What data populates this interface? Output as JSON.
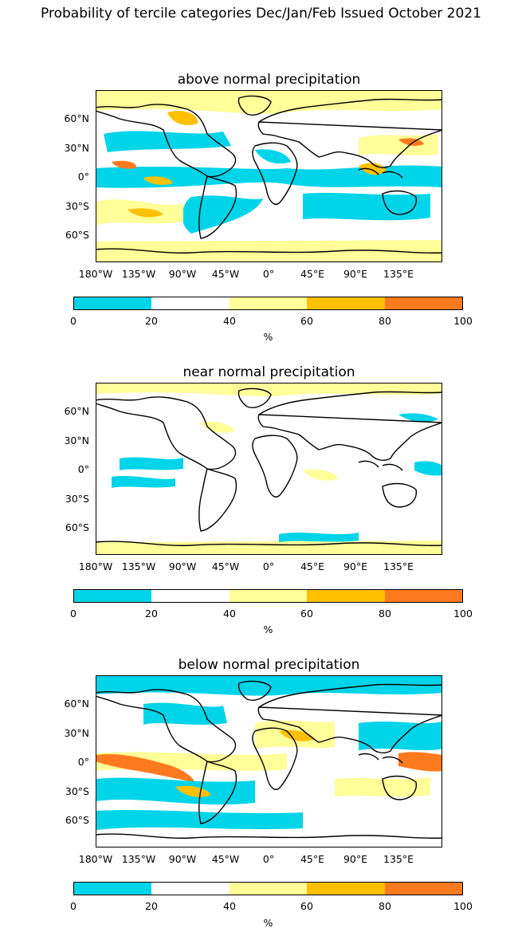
{
  "figure_title": "Probability of tercile categories Dec/Jan/Feb Issued October 2021",
  "panels": [
    {
      "title": "above normal precipitation",
      "category": "above"
    },
    {
      "title": "near normal precipitation",
      "category": "near"
    },
    {
      "title": "below normal precipitation",
      "category": "below"
    }
  ],
  "lat_labels": [
    "60°N",
    "30°N",
    "0°",
    "30°S",
    "60°S"
  ],
  "lon_labels": [
    "180°W",
    "135°W",
    "90°W",
    "45°W",
    "0°",
    "45°E",
    "90°E",
    "135°E"
  ],
  "colorbar": {
    "ticks": [
      "0",
      "20",
      "40",
      "60",
      "80",
      "100"
    ],
    "unit": "%",
    "bins": [
      {
        "range": "0-20",
        "color": "#00d4e8"
      },
      {
        "range": "20-40",
        "color": "#ffffff"
      },
      {
        "range": "40-60",
        "color": "#ffff99"
      },
      {
        "range": "60-80",
        "color": "#ffc000"
      },
      {
        "range": "80-100",
        "color": "#ff7a1e"
      }
    ]
  },
  "colors": {
    "cyan": "#00d4e8",
    "white": "#ffffff",
    "yellow": "#ffff99",
    "gold": "#ffc000",
    "orange": "#ff7a1e",
    "coast": "#000000"
  }
}
